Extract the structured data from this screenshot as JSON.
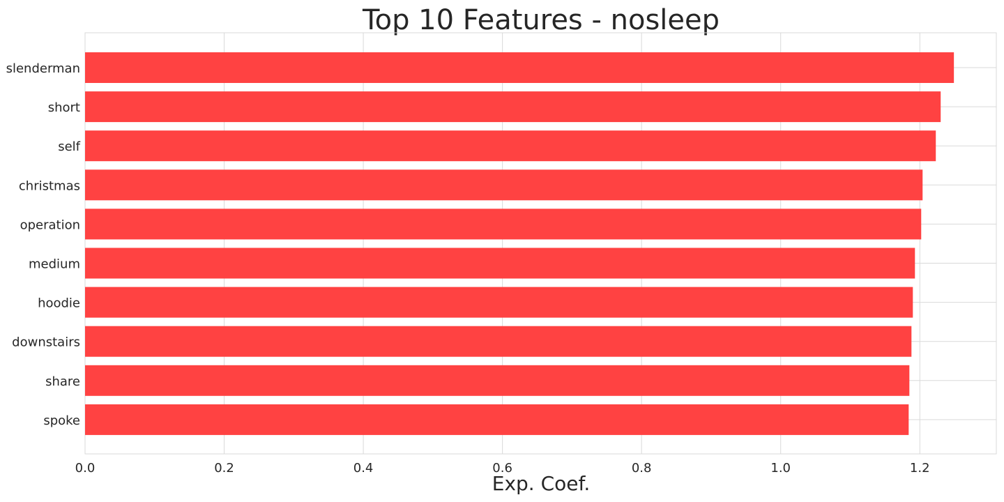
{
  "chart_data": {
    "type": "bar",
    "orientation": "horizontal",
    "title": "Top 10 Features - nosleep",
    "xlabel": "Exp. Coef.",
    "ylabel": "",
    "categories": [
      "slenderman",
      "short",
      "self",
      "christmas",
      "operation",
      "medium",
      "hoodie",
      "downstairs",
      "share",
      "spoke"
    ],
    "values": [
      1.249,
      1.23,
      1.223,
      1.204,
      1.202,
      1.193,
      1.19,
      1.188,
      1.185,
      1.184
    ],
    "xlim": [
      0.0,
      1.31
    ],
    "xticks": [
      "0.0",
      "0.2",
      "0.4",
      "0.6",
      "0.8",
      "1.0",
      "1.2"
    ],
    "bar_color": "#ff4242",
    "grid": true
  }
}
